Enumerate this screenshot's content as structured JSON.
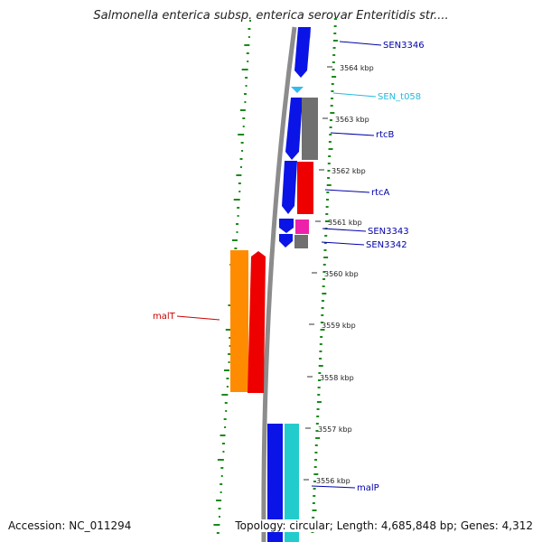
{
  "title": "Salmonella enterica subsp. enterica serovar Enteritidis str....",
  "accession": "Accession: NC_011294",
  "topology": "Topology: circular; Length: 4,685,848 bp; Genes: 4,312",
  "colors": {
    "backbone": "#8c8c8c",
    "cds_blue": "#0a14e6",
    "trna_cyan": "#33bbee",
    "cds_gray": "#707070",
    "cds_red": "#ee0000",
    "cds_magenta": "#ee22aa",
    "cds_orange": "#ff8c00",
    "cds_teal": "#22cccc",
    "gc_ticks": "#1a8a1a",
    "label_blue": "#0000aa",
    "label_red": "#cc0000",
    "label_cyan": "#22bbdd"
  },
  "scale_labels": [
    "3564 kbp",
    "3563 kbp",
    "3562 kbp",
    "3561 kbp",
    "3560 kbp",
    "3559 kbp",
    "3558 kbp",
    "3557 kbp",
    "3556 kbp"
  ],
  "gene_labels": [
    {
      "name": "SEN3346",
      "color_key": "label_blue"
    },
    {
      "name": "SEN_t058",
      "color_key": "label_cyan"
    },
    {
      "name": "rtcB",
      "color_key": "label_blue"
    },
    {
      "name": "rtcA",
      "color_key": "label_blue"
    },
    {
      "name": "SEN3343",
      "color_key": "label_blue"
    },
    {
      "name": "SEN3342",
      "color_key": "label_blue"
    },
    {
      "name": "malT",
      "color_key": "label_red"
    },
    {
      "name": "malP",
      "color_key": "label_blue"
    }
  ]
}
